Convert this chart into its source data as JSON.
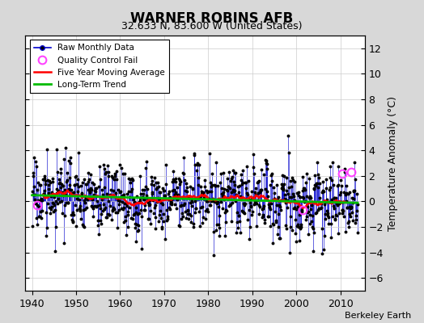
{
  "title": "WARNER ROBINS AFB",
  "subtitle": "32.633 N, 83.600 W (United States)",
  "ylabel": "Temperature Anomaly (°C)",
  "credit": "Berkeley Earth",
  "xlim": [
    1938.5,
    2015.5
  ],
  "ylim": [
    -7,
    13
  ],
  "yticks": [
    -6,
    -4,
    -2,
    0,
    2,
    4,
    6,
    8,
    10,
    12
  ],
  "xticks": [
    1940,
    1950,
    1960,
    1970,
    1980,
    1990,
    2000,
    2010
  ],
  "start_year": 1940,
  "end_year": 2013,
  "seed": 17,
  "plot_bg": "#ffffff",
  "fig_bg": "#d8d8d8",
  "line_color": "#0000cc",
  "dot_color": "#000000",
  "ma_color": "#ff0000",
  "trend_color": "#00bb00",
  "qc_color": "#ff44ff",
  "qc_points": [
    [
      1941,
      3,
      -0.3
    ],
    [
      2001,
      6,
      -0.7
    ],
    [
      2010,
      4,
      2.2
    ],
    [
      2012,
      5,
      2.3
    ]
  ],
  "noise_std": 1.4,
  "ma_window": 60
}
